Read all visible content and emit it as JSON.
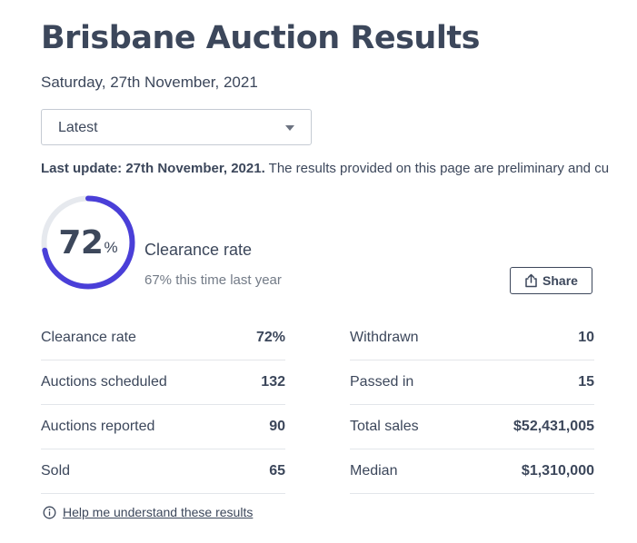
{
  "page": {
    "title": "Brisbane Auction Results",
    "date": "Saturday, 27th November, 2021"
  },
  "selector": {
    "value": "Latest"
  },
  "update": {
    "bold": "Last update: 27th November, 2021.",
    "text": " The results provided on this page are preliminary and cu"
  },
  "gauge": {
    "value": "72",
    "unit": "%",
    "fraction": 0.72,
    "label": "Clearance rate",
    "last_year": "67% this time last year",
    "ring_color": "#4a3fd8",
    "track_color": "#e6e9ee"
  },
  "share": {
    "label": "Share",
    "icon": "share-icon"
  },
  "stats_left": [
    {
      "label": "Clearance rate",
      "value": "72%"
    },
    {
      "label": "Auctions scheduled",
      "value": "132"
    },
    {
      "label": "Auctions reported",
      "value": "90"
    },
    {
      "label": "Sold",
      "value": "65"
    }
  ],
  "stats_right": [
    {
      "label": "Withdrawn",
      "value": "10"
    },
    {
      "label": "Passed in",
      "value": "15"
    },
    {
      "label": "Total sales",
      "value": "$52,431,005"
    },
    {
      "label": "Median",
      "value": "$1,310,000"
    }
  ],
  "help": {
    "label": "Help me understand these results",
    "icon": "info-icon"
  }
}
